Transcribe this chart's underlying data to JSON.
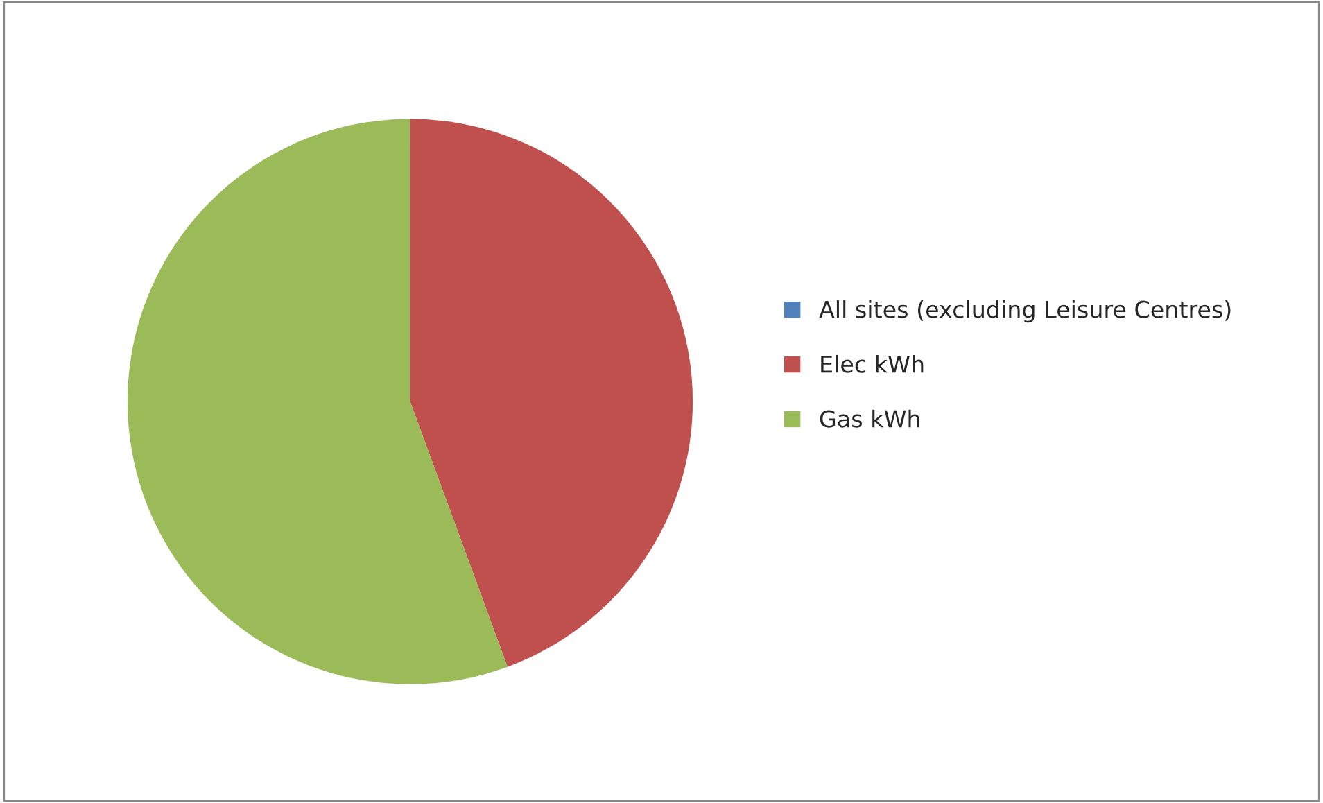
{
  "chart_data": {
    "type": "pie",
    "categories": [
      "All sites (excluding Leisure Centres)",
      "Elec kWh",
      "Gas kWh"
    ],
    "values": [
      0,
      44.4,
      55.6
    ],
    "colors": [
      "#4f81bd",
      "#c0504d",
      "#9bbb59"
    ],
    "legend": "right"
  }
}
